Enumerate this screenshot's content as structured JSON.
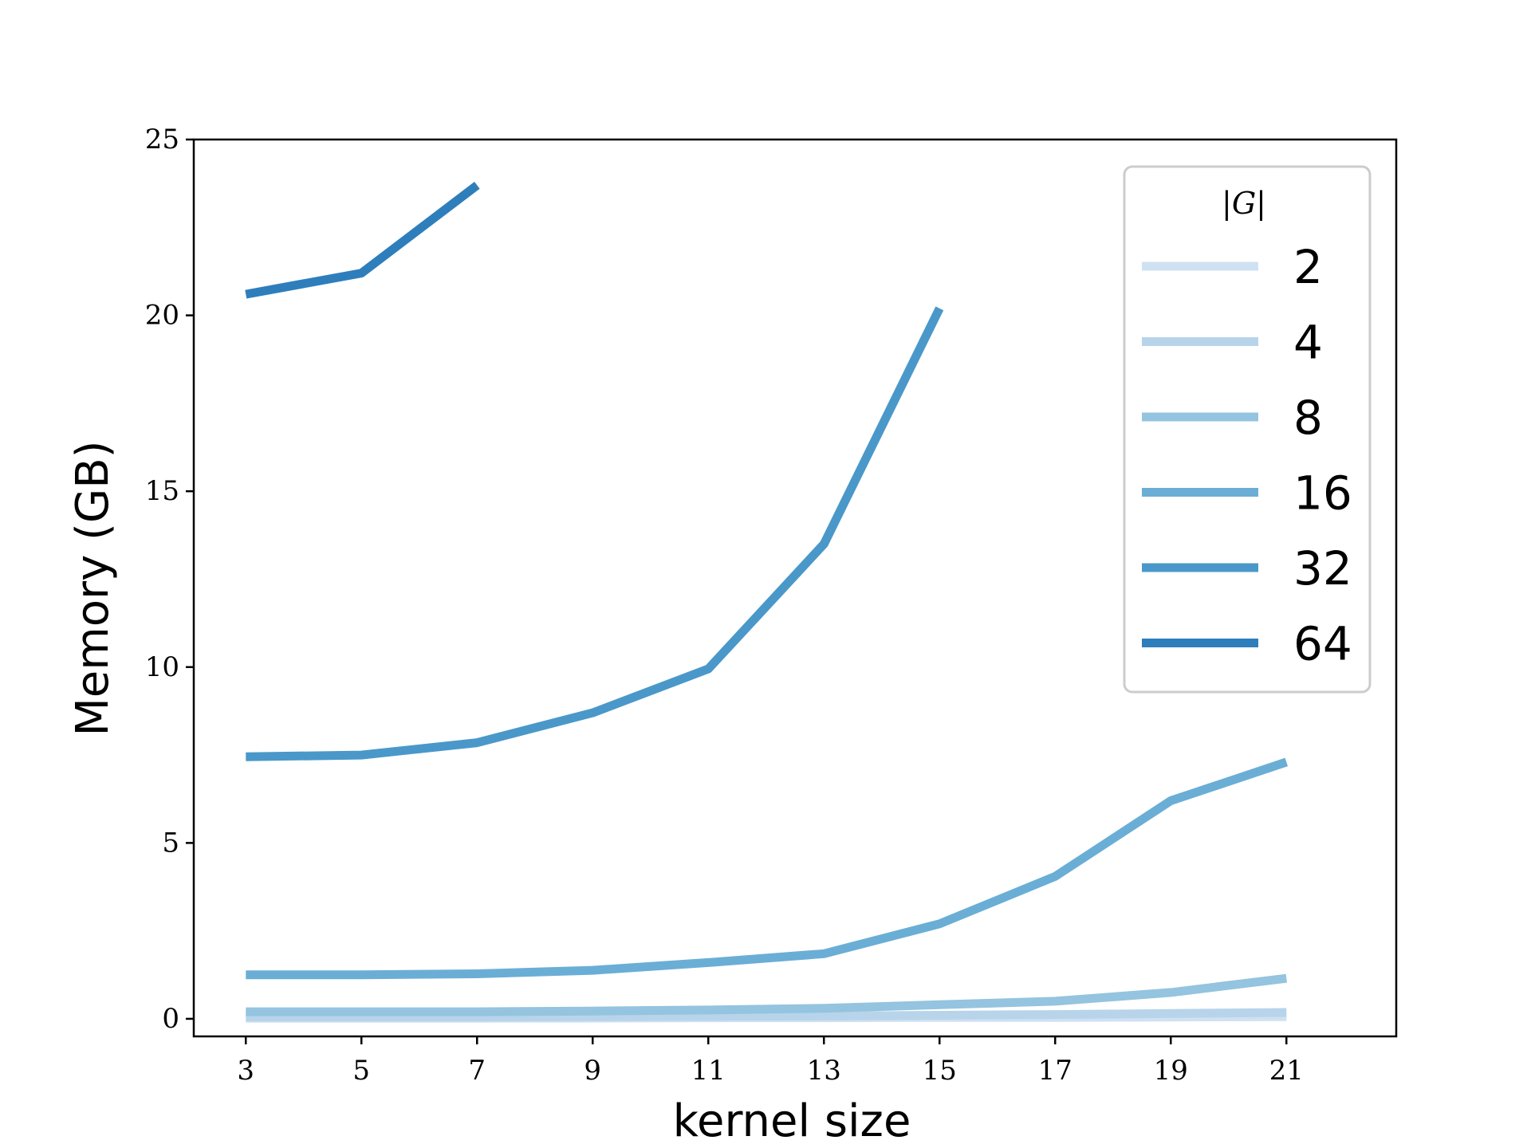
{
  "chart_data": {
    "type": "line",
    "xlabel": "kernel size",
    "ylabel": "Memory (GB)",
    "x_ticks": [
      3,
      5,
      7,
      9,
      11,
      13,
      15,
      17,
      19,
      21
    ],
    "y_ticks": [
      0,
      5,
      10,
      15,
      20,
      25
    ],
    "xlim": [
      2.1,
      22.9
    ],
    "ylim": [
      -0.5,
      25
    ],
    "grid": false,
    "legend": {
      "title": "|G|",
      "placement": "top-right"
    },
    "series": [
      {
        "name": "2",
        "color": "#cfe1f2",
        "x": [
          3,
          5,
          7,
          9,
          11,
          13,
          15,
          17,
          19,
          21
        ],
        "y": [
          0.02,
          0.02,
          0.02,
          0.02,
          0.03,
          0.03,
          0.04,
          0.04,
          0.05,
          0.06
        ]
      },
      {
        "name": "4",
        "color": "#b7d4ea",
        "x": [
          3,
          5,
          7,
          9,
          11,
          13,
          15,
          17,
          19,
          21
        ],
        "y": [
          0.05,
          0.05,
          0.05,
          0.06,
          0.07,
          0.08,
          0.1,
          0.12,
          0.15,
          0.18
        ]
      },
      {
        "name": "8",
        "color": "#94c4df",
        "x": [
          3,
          5,
          7,
          9,
          11,
          13,
          15,
          17,
          19,
          21
        ],
        "y": [
          0.2,
          0.2,
          0.2,
          0.22,
          0.25,
          0.3,
          0.4,
          0.5,
          0.75,
          1.15
        ]
      },
      {
        "name": "16",
        "color": "#6aaed6",
        "x": [
          3,
          5,
          7,
          9,
          11,
          13,
          15,
          17,
          19,
          21
        ],
        "y": [
          1.25,
          1.25,
          1.28,
          1.38,
          1.6,
          1.85,
          2.7,
          4.05,
          6.2,
          7.3
        ]
      },
      {
        "name": "32",
        "color": "#4a98c9",
        "x": [
          3,
          5,
          7,
          9,
          11,
          13,
          15
        ],
        "y": [
          7.45,
          7.5,
          7.85,
          8.7,
          9.95,
          13.5,
          20.2
        ]
      },
      {
        "name": "64",
        "color": "#2e7ebc",
        "x": [
          3,
          5,
          7
        ],
        "y": [
          20.6,
          21.2,
          23.7
        ]
      }
    ]
  }
}
